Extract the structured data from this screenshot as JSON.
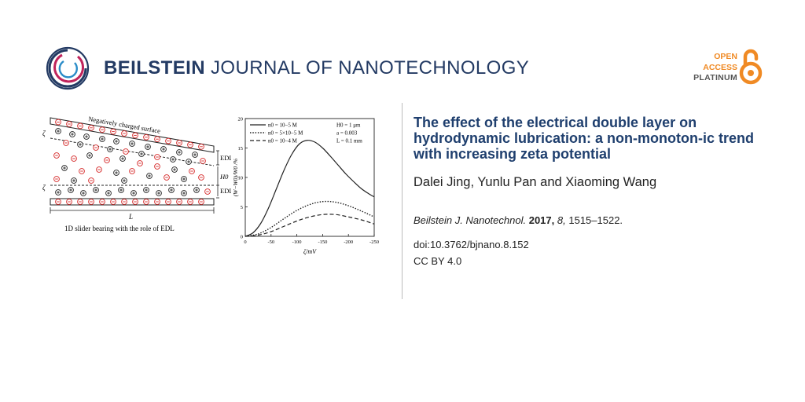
{
  "header": {
    "journal_bold": "BEILSTEIN",
    "journal_rest": "JOURNAL OF NANOTECHNOLOGY",
    "oa_line1": "OPEN",
    "oa_line2": "ACCESS",
    "oa_line3": "PLATINUM",
    "brand_navy": "#233a63",
    "brand_orange": "#f08a24"
  },
  "article": {
    "title": "The effect of the electrical double layer on hydrodynamic lubrication: a non-monoton-ic trend with increasing zeta potential",
    "authors": "Dalei Jing, Yunlu Pan and Xiaoming Wang",
    "journal_abbrev": "Beilstein J. Nanotechnol.",
    "year": "2017,",
    "volume": "8,",
    "pages": "1515–1522.",
    "doi": "doi:10.3762/bjnano.8.152",
    "license": "CC BY 4.0"
  },
  "schematic": {
    "surface_label": "Negatively charged surface",
    "zeta_top": "ζ",
    "zeta_bottom": "ζ",
    "edl_top": "EDL",
    "edl_bottom": "EDL",
    "gap_label": "H0",
    "length_label": "L",
    "caption": "1D slider bearing with the role of EDL"
  },
  "chart_data": {
    "type": "line",
    "title": "",
    "xlabel": "ζ/mV",
    "ylabel": "(W−W0)/W0 /%",
    "xlim": [
      0,
      -250
    ],
    "ylim": [
      0,
      20
    ],
    "xticks": [
      "0",
      "-50",
      "-100",
      "-150",
      "-200",
      "-250"
    ],
    "yticks": [
      "0",
      "5",
      "10",
      "15",
      "20"
    ],
    "annotations": [
      "H0 = 1 μm",
      "a = 0.003",
      "L = 0.1 mm"
    ],
    "legend_position": "top-left",
    "series": [
      {
        "name": "n0 = 10−5 M",
        "style": "solid",
        "x": [
          0,
          -15,
          -30,
          -45,
          -60,
          -75,
          -90,
          -105,
          -120,
          -135,
          -150,
          -165,
          -180,
          -195,
          -210,
          -225,
          -240,
          -250
        ],
        "y": [
          0,
          0.6,
          2.2,
          4.8,
          8.0,
          11.2,
          13.9,
          15.7,
          16.3,
          16.0,
          15.0,
          13.6,
          12.1,
          10.6,
          9.3,
          8.1,
          7.2,
          6.7
        ]
      },
      {
        "name": "n0 = 5×10−5 M",
        "style": "dotted",
        "x": [
          0,
          -25,
          -50,
          -75,
          -100,
          -125,
          -150,
          -175,
          -200,
          -225,
          -250
        ],
        "y": [
          0,
          0.4,
          1.5,
          3.0,
          4.4,
          5.4,
          5.9,
          5.8,
          5.2,
          4.3,
          3.3
        ]
      },
      {
        "name": "n0 = 10−4 M",
        "style": "dashed",
        "x": [
          0,
          -25,
          -50,
          -75,
          -100,
          -125,
          -150,
          -175,
          -200,
          -225,
          -250
        ],
        "y": [
          0,
          0.2,
          0.8,
          1.7,
          2.6,
          3.3,
          3.7,
          3.7,
          3.3,
          2.8,
          2.1
        ]
      }
    ]
  }
}
